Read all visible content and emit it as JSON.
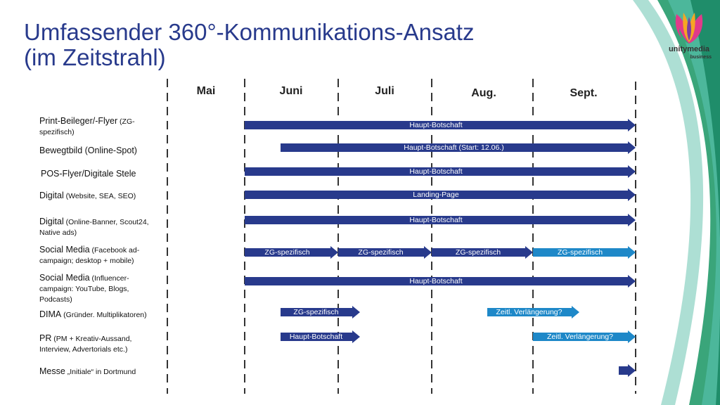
{
  "title": {
    "line1": "Umfassender 360°-Kommunikations-Ansatz",
    "line2": "(im Zeitstrahl)"
  },
  "months": [
    "Mai",
    "Juni",
    "Juli",
    "Aug.",
    "Sept."
  ],
  "rows": [
    {
      "main": "Print-Beileger/-Flyer",
      "sub": " (ZG-spezifisch)"
    },
    {
      "main": "Bewegtbild (Online-Spot)",
      "sub": ""
    },
    {
      "main": "POS-Flyer/Digitale Stele",
      "sub": ""
    },
    {
      "main": "Digital",
      "sub": " (Website, SEA, SEO)"
    },
    {
      "main": "Digital",
      "sub": " (Online-Banner, Scout24, Native ads)"
    },
    {
      "main": "Social Media",
      "sub": " (Facebook ad-campaign; desktop + mobile)"
    },
    {
      "main": "Social Media",
      "sub": " (Influencer-campaign: YouTube, Blogs, Podcasts)"
    },
    {
      "main": "DIMA",
      "sub": " (Gründer. Multiplikatoren)"
    },
    {
      "main": "PR",
      "sub": " (PM + Kreativ-Aussand, Interview, Advertorials etc.)"
    },
    {
      "main": "Messe",
      "sub": " „Initiale“ in Dortmund"
    }
  ],
  "bars": {
    "print": "Haupt-Botschaft",
    "bewegtbild": "Haupt-Botschaft (Start: 12.06.)",
    "pos": "Haupt-Botschaft",
    "digital_web": "Landing-Page",
    "digital_banner": "Haupt-Botschaft",
    "social_1": "ZG-spezifisch",
    "social_2": "ZG-spezifisch",
    "social_3": "ZG-spezifisch",
    "social_4": "ZG-spezifisch",
    "influencer": "Haupt-Botschaft",
    "dima_1": "ZG-spezifisch",
    "dima_2": "Zeitl. Verlängerung?",
    "pr_1": "Haupt-Botschaft",
    "pr_2": "Zeitl. Verlängerung?",
    "messe": ""
  },
  "colors": {
    "title": "#283a8c",
    "dark_blue": "#283a8c",
    "light_blue": "#1e88c8",
    "divider": "#333333",
    "accent_green": "#3aa57a",
    "accent_teal": "#59c3b0"
  },
  "logo": {
    "brand": "unitymedia",
    "sub": "business",
    "icon": "unitymedia-tulip-icon"
  }
}
